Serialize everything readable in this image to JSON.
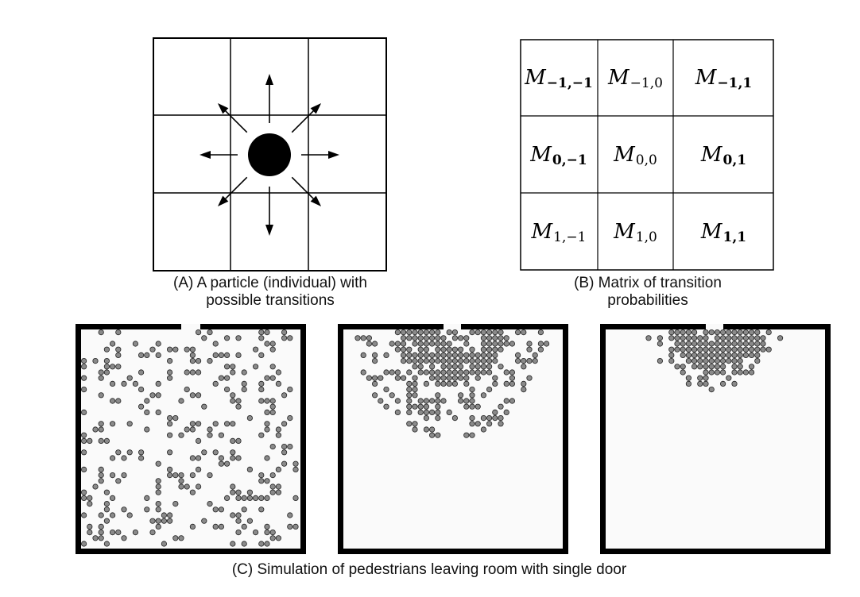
{
  "panelA": {
    "caption_line1": "(A) A particle (individual) with",
    "caption_line2": "possible transitions"
  },
  "panelB": {
    "caption_line1": "(B) Matrix of transition",
    "caption_line2": "probabilities",
    "matrix": [
      [
        {
          "sym": "M",
          "sub": "−1,−1",
          "bold": true
        },
        {
          "sym": "M",
          "sub": "−1,0",
          "bold": false
        },
        {
          "sym": "M",
          "sub": "−1,1",
          "bold": true
        }
      ],
      [
        {
          "sym": "M",
          "sub": "0,−1",
          "bold": true
        },
        {
          "sym": "M",
          "sub": "0,0",
          "bold": false
        },
        {
          "sym": "M",
          "sub": "0,1",
          "bold": true
        }
      ],
      [
        {
          "sym": "M",
          "sub": "1,−1",
          "bold": false
        },
        {
          "sym": "M",
          "sub": "1,0",
          "bold": false
        },
        {
          "sym": "M",
          "sub": "1,1",
          "bold": true
        }
      ]
    ]
  },
  "panelC": {
    "caption": "(C) Simulation of pedestrians leaving room with single door"
  },
  "colors": {
    "pedestrian": "#8a8a8a",
    "wall": "#000000",
    "room_bg": "#fafafa"
  }
}
